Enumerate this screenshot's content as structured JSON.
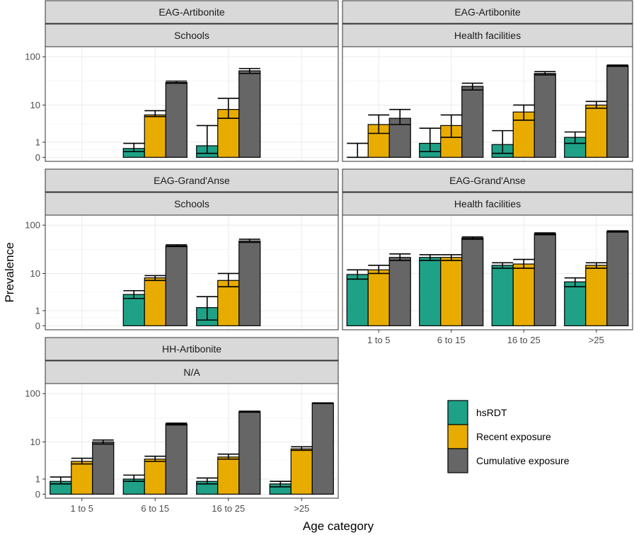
{
  "chart_data": {
    "type": "bar",
    "xlabel": "Age category",
    "ylabel": "Prevalence",
    "categories": [
      "1 to 5",
      "6 to 15",
      "16 to 25",
      ">25"
    ],
    "series_names": [
      "hsRDT",
      "Recent exposure",
      "Cumulative exposure"
    ],
    "colors": {
      "hsRDT": "#1fa187",
      "Recent exposure": "#e8ac00",
      "Cumulative exposure": "#666666"
    },
    "y_ticks": [
      0,
      1,
      10,
      100
    ],
    "y_tick_labels": [
      "0",
      "1",
      "10",
      "100"
    ],
    "panels": [
      {
        "id": "eag-artibonite-schools",
        "strip_top": "EAG-Artibonite",
        "strip_bottom": "Schools",
        "show_x_axis": false,
        "values": {
          "hsRDT": [
            null,
            0.5,
            0.7,
            null
          ],
          "Recent exposure": [
            null,
            6.0,
            8.0,
            null
          ],
          "Cumulative exposure": [
            null,
            30,
            52,
            null
          ]
        },
        "lower": {
          "hsRDT": [
            null,
            0.3,
            0.2,
            null
          ],
          "Recent exposure": [
            null,
            5.5,
            5.0,
            null
          ],
          "Cumulative exposure": [
            null,
            29,
            46,
            null
          ]
        },
        "upper": {
          "hsRDT": [
            null,
            0.9,
            3.3,
            null
          ],
          "Recent exposure": [
            null,
            7.5,
            14,
            null
          ],
          "Cumulative exposure": [
            null,
            32,
            58,
            null
          ]
        }
      },
      {
        "id": "eag-artibonite-health",
        "strip_top": "EAG-Artibonite",
        "strip_bottom": "Health facilities",
        "show_x_axis": false,
        "values": {
          "hsRDT": [
            0,
            0.9,
            0.8,
            1.5
          ],
          "Recent exposure": [
            3.5,
            3.3,
            7.0,
            10
          ],
          "Cumulative exposure": [
            5.0,
            25,
            46,
            66
          ]
        },
        "lower": {
          "hsRDT": [
            0,
            0.3,
            0.2,
            0.9
          ],
          "Recent exposure": [
            2.0,
            1.5,
            4.5,
            8.5
          ],
          "Cumulative exposure": [
            3.5,
            21,
            43,
            64
          ]
        },
        "upper": {
          "hsRDT": [
            0.9,
            2.8,
            2.4,
            2.2
          ],
          "Recent exposure": [
            6.0,
            6.0,
            10,
            12
          ],
          "Cumulative exposure": [
            8.0,
            29,
            50,
            68
          ]
        }
      },
      {
        "id": "eag-grandanse-schools",
        "strip_top": "EAG-Grand'Anse",
        "strip_bottom": "Schools",
        "show_x_axis": false,
        "values": {
          "hsRDT": [
            null,
            3.2,
            1.3,
            null
          ],
          "Recent exposure": [
            null,
            8.0,
            7.0,
            null
          ],
          "Cumulative exposure": [
            null,
            38,
            48,
            null
          ]
        },
        "lower": {
          "hsRDT": [
            null,
            2.5,
            0.3,
            null
          ],
          "Recent exposure": [
            null,
            7.0,
            5.0,
            null
          ],
          "Cumulative exposure": [
            null,
            37,
            45,
            null
          ]
        },
        "upper": {
          "hsRDT": [
            null,
            4.0,
            2.8,
            null
          ],
          "Recent exposure": [
            null,
            9.0,
            10,
            null
          ],
          "Cumulative exposure": [
            null,
            40,
            52,
            null
          ]
        }
      },
      {
        "id": "eag-grandanse-health",
        "strip_top": "EAG-Grand'Anse",
        "strip_bottom": "Health facilities",
        "show_x_axis": true,
        "values": {
          "hsRDT": [
            9.5,
            22,
            15,
            6.5
          ],
          "Recent exposure": [
            12,
            22,
            16,
            15
          ],
          "Cumulative exposure": [
            22,
            55,
            67,
            75
          ]
        },
        "lower": {
          "hsRDT": [
            7.5,
            19,
            13,
            5.0
          ],
          "Recent exposure": [
            10,
            19,
            13,
            13
          ],
          "Cumulative exposure": [
            19,
            52,
            64,
            73
          ]
        },
        "upper": {
          "hsRDT": [
            12,
            25,
            17,
            8.0
          ],
          "Recent exposure": [
            15,
            25,
            20,
            17
          ],
          "Cumulative exposure": [
            26,
            58,
            70,
            77
          ]
        }
      },
      {
        "id": "hh-artibonite-na",
        "strip_top": "HH-Artibonite",
        "strip_bottom": "N/A",
        "show_x_axis": true,
        "values": {
          "hsRDT": [
            0.8,
            1.0,
            0.8,
            0.6
          ],
          "Recent exposure": [
            3.5,
            4.0,
            4.5,
            7.0
          ],
          "Cumulative exposure": [
            10,
            24,
            43,
            64
          ]
        },
        "lower": {
          "hsRDT": [
            0.6,
            0.8,
            0.6,
            0.4
          ],
          "Recent exposure": [
            3.0,
            3.5,
            4.0,
            6.5
          ],
          "Cumulative exposure": [
            9,
            23,
            42,
            63
          ]
        },
        "upper": {
          "hsRDT": [
            1.2,
            1.4,
            1.1,
            0.8
          ],
          "Recent exposure": [
            4.2,
            4.7,
            5.3,
            7.8
          ],
          "Cumulative exposure": [
            11,
            25,
            44,
            65
          ]
        }
      }
    ],
    "legend": {
      "position": "bottom-right",
      "entries": [
        "hsRDT",
        "Recent exposure",
        "Cumulative exposure"
      ]
    }
  }
}
